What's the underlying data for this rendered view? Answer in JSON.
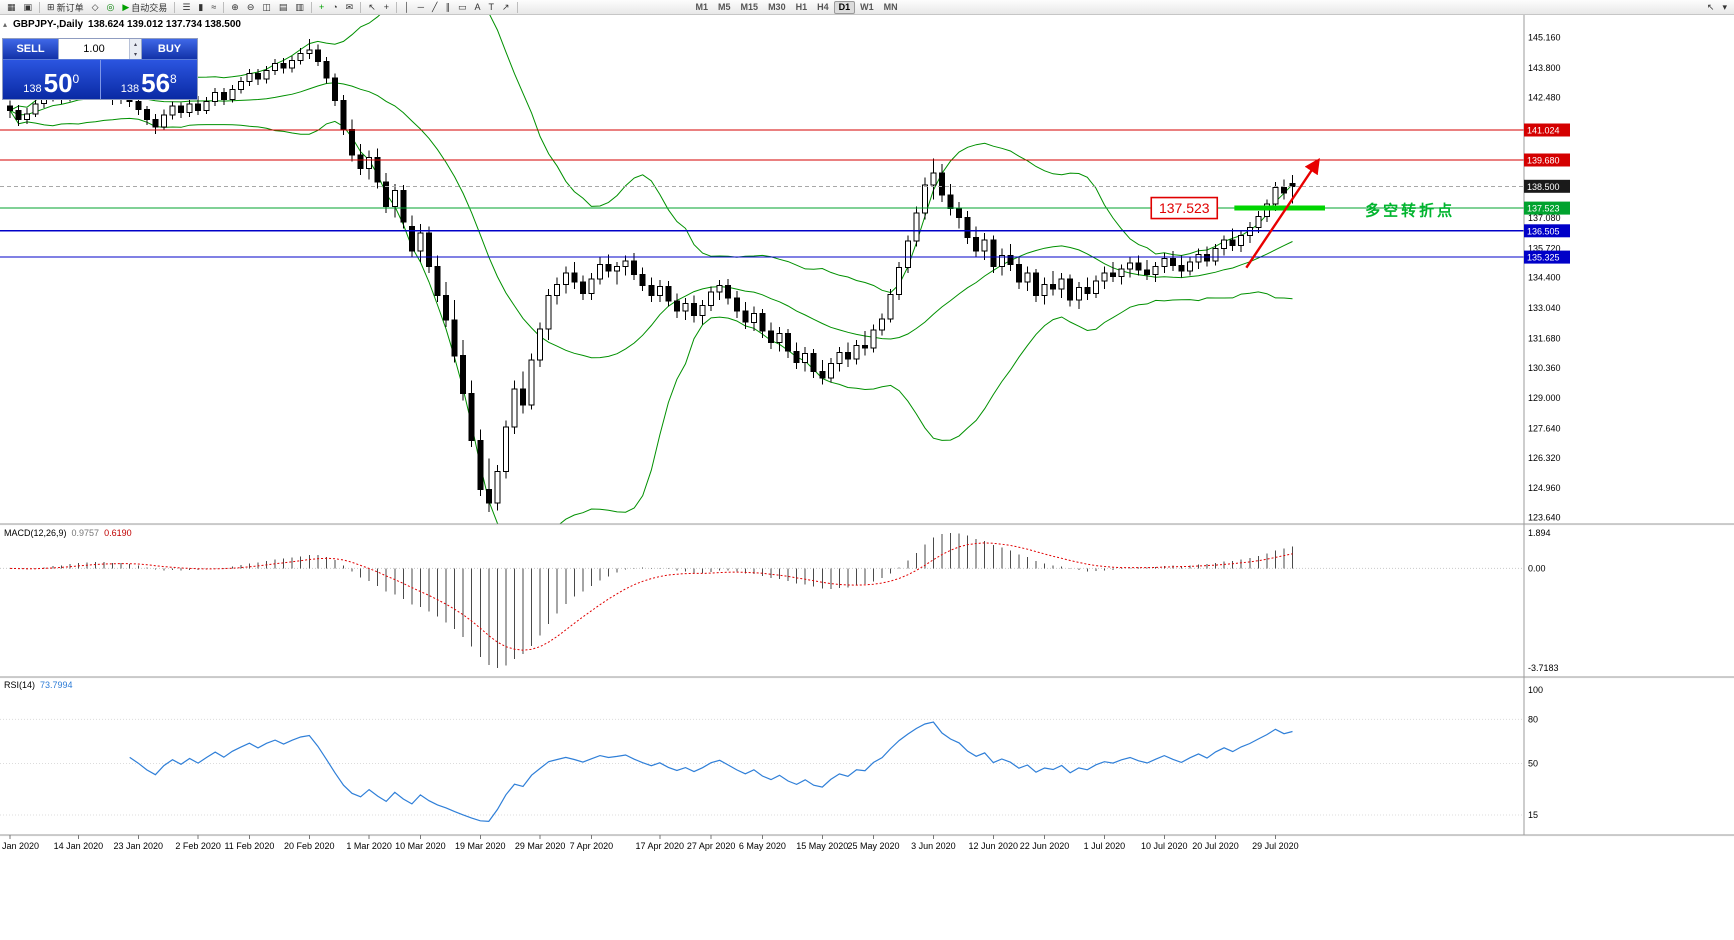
{
  "toolbar": {
    "items": [
      {
        "n": "new-chart",
        "g": "▦"
      },
      {
        "n": "profiles",
        "g": "▣"
      },
      {
        "n": "sep"
      },
      {
        "n": "new-order",
        "g": "⊞",
        "label": "新订单"
      },
      {
        "n": "alerts",
        "g": "◇"
      },
      {
        "n": "indicator-list",
        "g": "◎",
        "c": "#008000"
      },
      {
        "n": "auto-trading",
        "g": "▶",
        "label": "自动交易",
        "c": "#00a000"
      },
      {
        "n": "sep"
      },
      {
        "n": "bar-chart-mode",
        "g": "☰"
      },
      {
        "n": "candle-chart-mode",
        "g": "▮"
      },
      {
        "n": "line-chart-mode",
        "g": "≈"
      },
      {
        "n": "sep"
      },
      {
        "n": "zoom-in",
        "g": "⊕"
      },
      {
        "n": "zoom-out",
        "g": "⊖"
      },
      {
        "n": "tile-windows",
        "g": "◫"
      },
      {
        "n": "cascade-windows",
        "g": "▤"
      },
      {
        "n": "arrange-windows",
        "g": "▥"
      },
      {
        "n": "sep"
      },
      {
        "n": "add-indicator",
        "g": "+",
        "c": "#00a000"
      },
      {
        "n": "periods-menu",
        "g": "◔"
      },
      {
        "n": "templates",
        "g": "✉"
      },
      {
        "n": "sep"
      },
      {
        "n": "cursor",
        "g": "↖"
      },
      {
        "n": "crosshair",
        "g": "+"
      },
      {
        "n": "sep"
      },
      {
        "n": "vertical-line",
        "g": "│"
      },
      {
        "n": "horizontal-line",
        "g": "─"
      },
      {
        "n": "trendline",
        "g": "╱"
      },
      {
        "n": "equidistant-channel",
        "g": "∥"
      },
      {
        "n": "shapes",
        "g": "▭"
      },
      {
        "n": "text",
        "g": "A"
      },
      {
        "n": "text-label",
        "g": "T"
      },
      {
        "n": "arrow-objects",
        "g": "↗"
      },
      {
        "n": "sep"
      }
    ],
    "timeframes": [
      "M1",
      "M5",
      "M15",
      "M30",
      "H1",
      "H4",
      "D1",
      "W1",
      "MN"
    ],
    "active_timeframe": "D1",
    "right_icons": [
      {
        "n": "pointer-tool",
        "g": "↖"
      },
      {
        "n": "toolbar-overflow",
        "g": "▾"
      }
    ]
  },
  "chart": {
    "title_symbol": "GBPJPY-,Daily",
    "title_ohlc": "138.624 139.012 137.734 138.500",
    "trade_panel": {
      "collapse_glyph": "▴",
      "sell_label": "SELL",
      "buy_label": "BUY",
      "volume": "1.00",
      "spin_up": "▴",
      "spin_down": "▾",
      "bid": {
        "prefix": "138",
        "big": "50",
        "sup": "0"
      },
      "ask": {
        "prefix": "138",
        "big": "56",
        "sup": "8"
      }
    },
    "price_axis_labels": [
      "145.160",
      "143.800",
      "142.480",
      "137.080",
      "135.720",
      "134.400",
      "133.040",
      "131.680",
      "130.360",
      "129.000",
      "127.640",
      "126.320",
      "124.960",
      "123.640"
    ],
    "price_boxes": [
      {
        "text": "141.024",
        "price": 141.024,
        "bg": "#d40000"
      },
      {
        "text": "139.680",
        "price": 139.68,
        "bg": "#d40000"
      },
      {
        "text": "138.500",
        "price": 138.5,
        "bg": "#1a1a1a"
      },
      {
        "text": "137.523",
        "price": 137.523,
        "bg": "#00a32e"
      },
      {
        "text": "136.505",
        "price": 136.505,
        "bg": "#0000c8"
      },
      {
        "text": "135.325",
        "price": 135.325,
        "bg": "#0000c8"
      }
    ],
    "hlines": [
      {
        "price": 141.024,
        "color": "#d40000",
        "width": 1
      },
      {
        "price": 139.68,
        "color": "#d40000",
        "width": 1
      },
      {
        "price": 138.5,
        "color": "#a8a8a8",
        "width": 1,
        "dash": "4,3"
      },
      {
        "price": 137.523,
        "color": "#00a32e",
        "width": 1
      },
      {
        "price": 136.505,
        "color": "#0000c8",
        "width": 1.2
      },
      {
        "price": 135.325,
        "color": "#0000c8",
        "width": 1.2
      }
    ],
    "annotations": {
      "price_flag": {
        "text": "137.523",
        "price": 137.523,
        "right_idx": 141.2,
        "color": "#e00000"
      },
      "pivot_segment": {
        "price": 137.523,
        "from_idx": 143.2,
        "to_idx": 153.8,
        "color": "#00d500",
        "width": 5
      },
      "pivot_text": {
        "text": "多空转折点",
        "idx": 158.5,
        "price": 137.42,
        "color": "#00b42e",
        "size": 15
      },
      "arrow": {
        "from_idx": 144.6,
        "from_price": 134.85,
        "to_idx": 153.0,
        "to_price": 139.65,
        "color": "#e80000"
      }
    }
  },
  "chart_data": {
    "type": "candlestick",
    "symbol": "GBPJPY",
    "timeframe": "Daily",
    "current_ohlc": [
      138.624,
      139.012,
      137.734,
      138.5
    ],
    "price_axis_range": [
      123.64,
      145.16
    ],
    "date_ticks": [
      {
        "label": "Jan 2020",
        "idx": 0
      },
      {
        "label": "14 Jan 2020",
        "idx": 8
      },
      {
        "label": "23 Jan 2020",
        "idx": 15
      },
      {
        "label": "2 Feb 2020",
        "idx": 22
      },
      {
        "label": "11 Feb 2020",
        "idx": 28
      },
      {
        "label": "20 Feb 2020",
        "idx": 35
      },
      {
        "label": "1 Mar 2020",
        "idx": 42
      },
      {
        "label": "10 Mar 2020",
        "idx": 48
      },
      {
        "label": "19 Mar 2020",
        "idx": 55
      },
      {
        "label": "29 Mar 2020",
        "idx": 62
      },
      {
        "label": "7 Apr 2020",
        "idx": 68
      },
      {
        "label": "17 Apr 2020",
        "idx": 76
      },
      {
        "label": "27 Apr 2020",
        "idx": 82
      },
      {
        "label": "6 May 2020",
        "idx": 88
      },
      {
        "label": "15 May 2020",
        "idx": 95
      },
      {
        "label": "25 May 2020",
        "idx": 101
      },
      {
        "label": "3 Jun 2020",
        "idx": 108
      },
      {
        "label": "12 Jun 2020",
        "idx": 115
      },
      {
        "label": "22 Jun 2020",
        "idx": 121
      },
      {
        "label": "1 Jul 2020",
        "idx": 128
      },
      {
        "label": "10 Jul 2020",
        "idx": 135
      },
      {
        "label": "20 Jul 2020",
        "idx": 141
      },
      {
        "label": "29 Jul 2020",
        "idx": 148
      }
    ],
    "candles": [
      [
        142.1,
        142.35,
        141.55,
        141.9
      ],
      [
        141.9,
        142.15,
        141.2,
        141.5
      ],
      [
        141.5,
        142.0,
        141.3,
        141.75
      ],
      [
        141.75,
        142.45,
        141.6,
        142.2
      ],
      [
        142.2,
        142.8,
        142.0,
        142.55
      ],
      [
        142.55,
        143.05,
        142.3,
        142.8
      ],
      [
        142.8,
        142.95,
        142.2,
        142.5
      ],
      [
        142.5,
        143.1,
        142.3,
        142.9
      ],
      [
        142.9,
        143.45,
        142.65,
        143.2
      ],
      [
        143.2,
        143.4,
        142.55,
        142.8
      ],
      [
        142.8,
        143.35,
        142.6,
        143.1
      ],
      [
        143.1,
        143.3,
        142.5,
        142.75
      ],
      [
        142.75,
        142.95,
        142.15,
        142.4
      ],
      [
        142.4,
        142.95,
        142.2,
        142.7
      ],
      [
        142.7,
        142.85,
        142.05,
        142.3
      ],
      [
        142.3,
        142.5,
        141.7,
        141.95
      ],
      [
        141.95,
        142.1,
        141.25,
        141.5
      ],
      [
        141.5,
        141.75,
        140.85,
        141.15
      ],
      [
        141.15,
        141.95,
        141.0,
        141.7
      ],
      [
        141.7,
        142.3,
        141.5,
        142.1
      ],
      [
        142.1,
        142.25,
        141.55,
        141.8
      ],
      [
        141.8,
        142.45,
        141.6,
        142.2
      ],
      [
        142.2,
        142.55,
        141.7,
        141.9
      ],
      [
        141.9,
        142.5,
        141.75,
        142.3
      ],
      [
        142.3,
        142.9,
        142.1,
        142.7
      ],
      [
        142.7,
        142.9,
        142.15,
        142.4
      ],
      [
        142.4,
        143.05,
        142.25,
        142.85
      ],
      [
        142.85,
        143.4,
        142.65,
        143.2
      ],
      [
        143.2,
        143.75,
        143.0,
        143.55
      ],
      [
        143.55,
        143.75,
        143.05,
        143.3
      ],
      [
        143.3,
        143.9,
        143.1,
        143.7
      ],
      [
        143.7,
        144.2,
        143.5,
        144.0
      ],
      [
        144.0,
        144.25,
        143.55,
        143.8
      ],
      [
        143.8,
        144.35,
        143.6,
        144.15
      ],
      [
        144.15,
        144.7,
        143.95,
        144.45
      ],
      [
        144.45,
        145.1,
        144.2,
        144.6
      ],
      [
        144.6,
        144.85,
        143.9,
        144.1
      ],
      [
        144.1,
        144.3,
        143.1,
        143.35
      ],
      [
        143.35,
        143.55,
        142.1,
        142.35
      ],
      [
        142.35,
        142.6,
        140.8,
        141.05
      ],
      [
        141.05,
        141.5,
        139.6,
        139.9
      ],
      [
        139.9,
        140.4,
        139.0,
        139.3
      ],
      [
        139.3,
        140.1,
        138.8,
        139.8
      ],
      [
        139.8,
        140.2,
        138.4,
        138.7
      ],
      [
        138.7,
        139.1,
        137.3,
        137.6
      ],
      [
        137.6,
        138.6,
        137.1,
        138.3
      ],
      [
        138.3,
        138.55,
        136.6,
        136.9
      ],
      [
        136.7,
        137.2,
        135.3,
        135.6
      ],
      [
        135.6,
        136.8,
        135.1,
        136.4
      ],
      [
        136.4,
        136.7,
        134.6,
        134.9
      ],
      [
        134.9,
        135.4,
        133.3,
        133.6
      ],
      [
        133.6,
        134.2,
        132.2,
        132.5
      ],
      [
        132.5,
        133.4,
        130.6,
        130.9
      ],
      [
        130.9,
        131.6,
        128.9,
        129.2
      ],
      [
        129.2,
        129.8,
        126.8,
        127.1
      ],
      [
        127.1,
        127.6,
        124.6,
        124.9
      ],
      [
        124.9,
        126.3,
        123.9,
        124.3
      ],
      [
        124.3,
        126.0,
        123.95,
        125.7
      ],
      [
        125.7,
        128.0,
        125.4,
        127.7
      ],
      [
        127.7,
        129.8,
        127.4,
        129.4
      ],
      [
        129.4,
        130.2,
        128.3,
        128.7
      ],
      [
        128.7,
        131.0,
        128.5,
        130.7
      ],
      [
        130.7,
        132.4,
        130.4,
        132.1
      ],
      [
        132.1,
        133.9,
        131.6,
        133.6
      ],
      [
        133.6,
        134.4,
        133.2,
        134.1
      ],
      [
        134.1,
        134.9,
        133.7,
        134.6
      ],
      [
        134.6,
        135.1,
        133.9,
        134.2
      ],
      [
        134.2,
        134.5,
        133.4,
        133.7
      ],
      [
        133.7,
        134.6,
        133.4,
        134.35
      ],
      [
        134.35,
        135.3,
        134.1,
        135.0
      ],
      [
        135.0,
        135.45,
        134.4,
        134.7
      ],
      [
        134.7,
        135.1,
        134.1,
        134.9
      ],
      [
        134.9,
        135.4,
        134.5,
        135.15
      ],
      [
        135.15,
        135.5,
        134.3,
        134.55
      ],
      [
        134.55,
        134.85,
        133.8,
        134.05
      ],
      [
        134.05,
        134.4,
        133.3,
        133.6
      ],
      [
        133.6,
        134.3,
        133.3,
        134.0
      ],
      [
        134.0,
        134.25,
        133.1,
        133.35
      ],
      [
        133.35,
        133.7,
        132.6,
        132.9
      ],
      [
        132.9,
        133.5,
        132.5,
        133.25
      ],
      [
        133.25,
        133.6,
        132.4,
        132.7
      ],
      [
        132.7,
        133.4,
        132.3,
        133.15
      ],
      [
        133.15,
        134.0,
        132.9,
        133.75
      ],
      [
        133.75,
        134.3,
        133.4,
        134.05
      ],
      [
        134.05,
        134.35,
        133.2,
        133.5
      ],
      [
        133.5,
        133.8,
        132.6,
        132.9
      ],
      [
        132.9,
        133.3,
        132.1,
        132.4
      ],
      [
        132.4,
        133.1,
        132.0,
        132.8
      ],
      [
        132.8,
        133.0,
        131.7,
        132.0
      ],
      [
        132.0,
        132.4,
        131.2,
        131.5
      ],
      [
        131.5,
        132.2,
        131.1,
        131.9
      ],
      [
        131.9,
        132.1,
        130.8,
        131.1
      ],
      [
        131.1,
        131.5,
        130.3,
        130.6
      ],
      [
        130.6,
        131.3,
        130.2,
        131.0
      ],
      [
        131.0,
        131.2,
        129.9,
        130.2
      ],
      [
        130.2,
        130.7,
        129.6,
        129.9
      ],
      [
        129.9,
        130.8,
        129.7,
        130.55
      ],
      [
        130.55,
        131.3,
        130.2,
        131.05
      ],
      [
        131.05,
        131.5,
        130.4,
        130.75
      ],
      [
        130.75,
        131.6,
        130.5,
        131.35
      ],
      [
        131.35,
        132.0,
        130.9,
        131.25
      ],
      [
        131.25,
        132.3,
        131.05,
        132.05
      ],
      [
        132.05,
        132.8,
        131.8,
        132.55
      ],
      [
        132.55,
        133.9,
        132.4,
        133.65
      ],
      [
        133.65,
        135.1,
        133.4,
        134.85
      ],
      [
        134.85,
        136.3,
        134.6,
        136.05
      ],
      [
        136.05,
        137.6,
        135.8,
        137.3
      ],
      [
        137.3,
        138.9,
        137.0,
        138.55
      ],
      [
        138.55,
        139.75,
        137.9,
        139.1
      ],
      [
        139.1,
        139.5,
        137.8,
        138.1
      ],
      [
        138.1,
        138.6,
        137.2,
        137.5
      ],
      [
        137.5,
        137.8,
        136.6,
        137.1
      ],
      [
        137.1,
        137.4,
        135.9,
        136.2
      ],
      [
        136.2,
        136.7,
        135.3,
        135.6
      ],
      [
        135.6,
        136.4,
        135.2,
        136.1
      ],
      [
        136.1,
        136.3,
        134.6,
        134.9
      ],
      [
        134.9,
        135.7,
        134.5,
        135.4
      ],
      [
        135.4,
        135.9,
        134.7,
        135.0
      ],
      [
        135.0,
        135.3,
        133.9,
        134.2
      ],
      [
        134.2,
        134.9,
        133.8,
        134.6
      ],
      [
        134.6,
        134.8,
        133.3,
        133.6
      ],
      [
        133.6,
        134.4,
        133.2,
        134.1
      ],
      [
        134.1,
        134.7,
        133.6,
        133.9
      ],
      [
        133.9,
        134.6,
        133.5,
        134.35
      ],
      [
        134.35,
        134.55,
        133.1,
        133.4
      ],
      [
        133.4,
        134.2,
        133.0,
        133.95
      ],
      [
        133.95,
        134.4,
        133.4,
        133.7
      ],
      [
        133.7,
        134.5,
        133.5,
        134.25
      ],
      [
        134.25,
        134.9,
        133.9,
        134.6
      ],
      [
        134.6,
        135.1,
        134.2,
        134.45
      ],
      [
        134.45,
        135.0,
        134.1,
        134.8
      ],
      [
        134.8,
        135.3,
        134.4,
        135.05
      ],
      [
        135.05,
        135.4,
        134.5,
        134.75
      ],
      [
        134.75,
        135.2,
        134.3,
        134.55
      ],
      [
        134.55,
        135.1,
        134.2,
        134.9
      ],
      [
        134.9,
        135.5,
        134.6,
        135.25
      ],
      [
        135.25,
        135.6,
        134.7,
        134.95
      ],
      [
        134.95,
        135.4,
        134.4,
        134.7
      ],
      [
        134.7,
        135.3,
        134.5,
        135.1
      ],
      [
        135.1,
        135.7,
        134.8,
        135.45
      ],
      [
        135.45,
        135.8,
        134.9,
        135.15
      ],
      [
        135.15,
        135.9,
        134.95,
        135.7
      ],
      [
        135.7,
        136.3,
        135.4,
        136.1
      ],
      [
        136.1,
        136.6,
        135.6,
        135.85
      ],
      [
        135.85,
        136.5,
        135.55,
        136.3
      ],
      [
        136.3,
        136.9,
        135.95,
        136.65
      ],
      [
        136.65,
        137.4,
        136.4,
        137.15
      ],
      [
        137.15,
        137.9,
        136.9,
        137.7
      ],
      [
        137.7,
        138.7,
        137.4,
        138.45
      ],
      [
        138.45,
        138.8,
        137.9,
        138.2
      ],
      [
        138.62,
        139.01,
        137.73,
        138.5
      ]
    ],
    "indicators": {
      "bollinger": {
        "period": 20,
        "deviation": 2,
        "color": "#009000"
      },
      "macd": {
        "label": "MACD(12,26,9)",
        "value_main": "0.9757",
        "value_signal": "0.6190",
        "scale_max": "1.894",
        "scale_zero": "0.00",
        "scale_min": "-3.7183",
        "bar_color": "#4a4a4a",
        "signal_color": "#e00000"
      },
      "rsi": {
        "label": "RSI(14)",
        "value": "73.7994",
        "levels": [
          "100",
          "80",
          "50",
          "15"
        ],
        "color": "#2f7fd8"
      }
    }
  }
}
